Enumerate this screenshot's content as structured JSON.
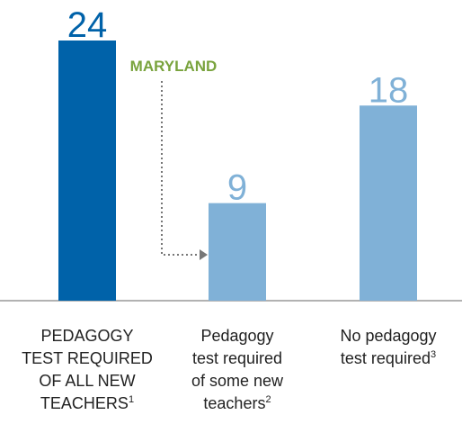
{
  "chart_data": {
    "type": "bar",
    "categories": [
      [
        "PEDAGOGY",
        "TEST REQUIRED",
        "OF ALL NEW",
        "TEACHERS"
      ],
      [
        "Pedagogy",
        "test required",
        "of some new",
        "teachers"
      ],
      [
        "No pedagogy",
        "test required"
      ]
    ],
    "footnotes": [
      "1",
      "2",
      "3"
    ],
    "values": [
      24,
      9,
      18
    ],
    "colors": [
      "#0062a9",
      "#80b1d7",
      "#80b1d7"
    ],
    "annotation": "MARYLAND",
    "annotation_color": "#79a33d"
  }
}
